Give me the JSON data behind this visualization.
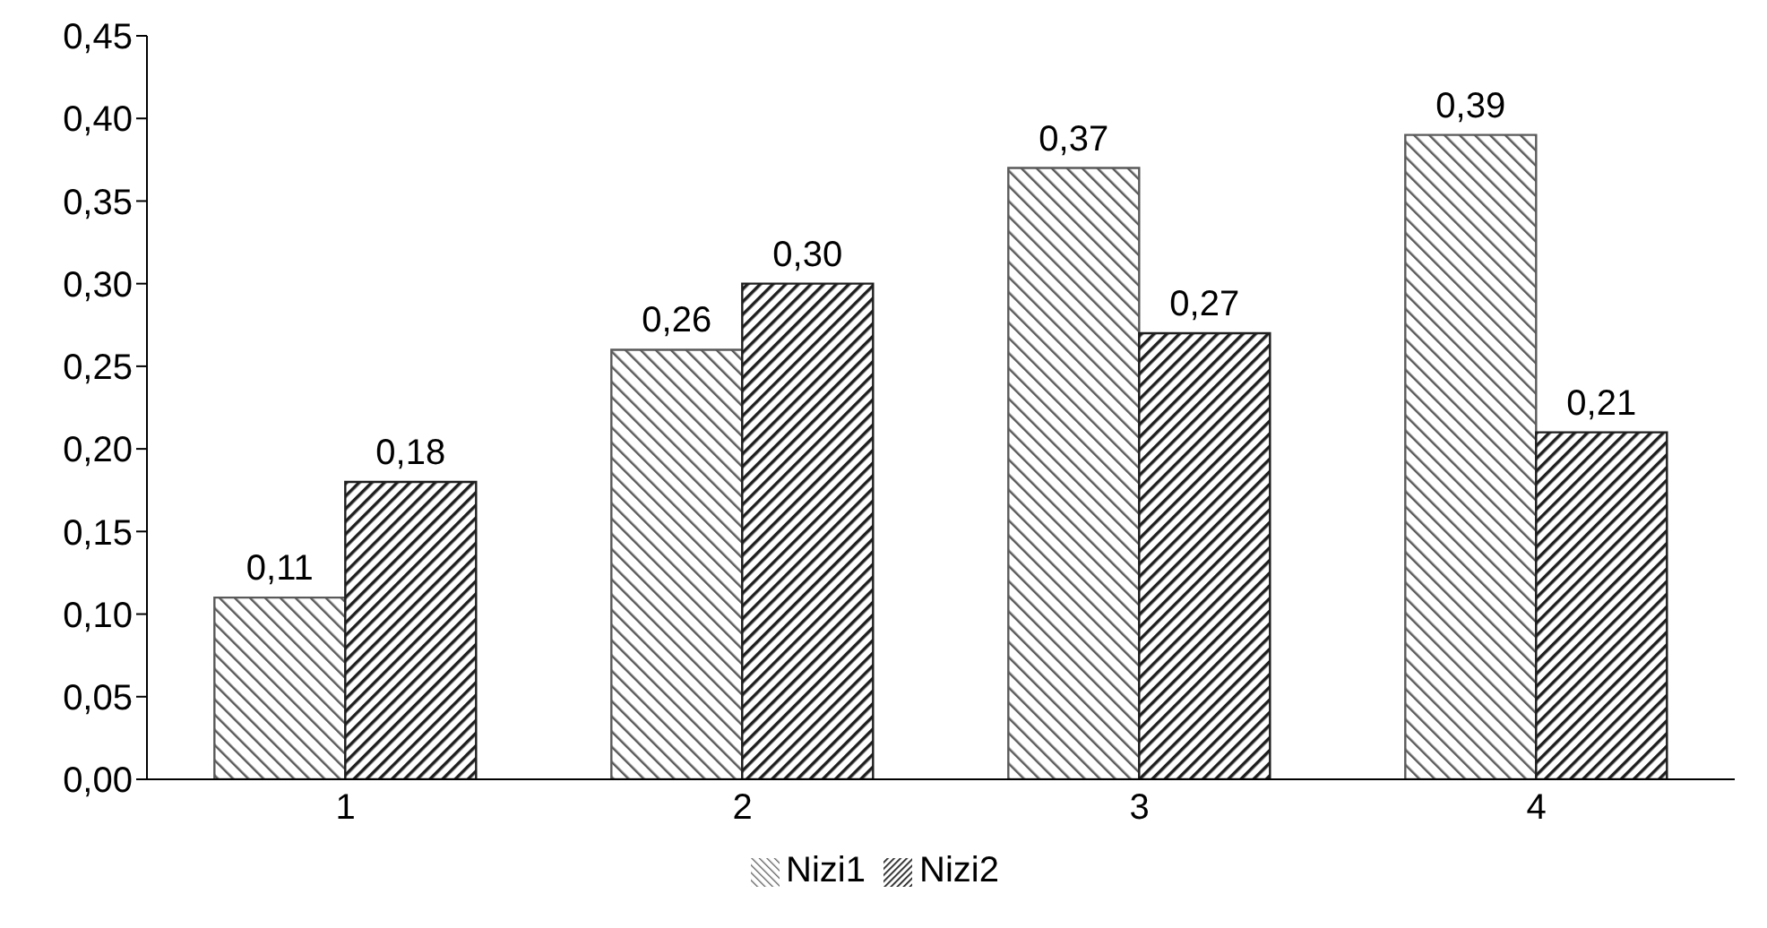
{
  "chart_data": {
    "type": "bar",
    "categories": [
      "1",
      "2",
      "3",
      "4"
    ],
    "series": [
      {
        "name": "Nizi1",
        "color": "#5a5a5a",
        "values": [
          0.11,
          0.26,
          0.37,
          0.39
        ],
        "value_labels": [
          "0,11",
          "0,26",
          "0,37",
          "0,39"
        ]
      },
      {
        "name": "Nizi2",
        "color": "#1e1e1e",
        "values": [
          0.18,
          0.3,
          0.27,
          0.21
        ],
        "value_labels": [
          "0,18",
          "0,30",
          "0,27",
          "0,21"
        ]
      }
    ],
    "ylim": [
      0,
      0.45
    ],
    "yticks": [
      {
        "value": 0,
        "label": "0,00"
      },
      {
        "value": 0.05,
        "label": "0,05"
      },
      {
        "value": 0.1,
        "label": "0,10"
      },
      {
        "value": 0.15,
        "label": "0,15"
      },
      {
        "value": 0.2,
        "label": "0,20"
      },
      {
        "value": 0.25,
        "label": "0,25"
      },
      {
        "value": 0.3,
        "label": "0,30"
      },
      {
        "value": 0.35,
        "label": "0,35"
      },
      {
        "value": 0.4,
        "label": "0,40"
      },
      {
        "value": 0.45,
        "label": "0,45"
      }
    ],
    "grid": false,
    "legend": "bottom"
  }
}
